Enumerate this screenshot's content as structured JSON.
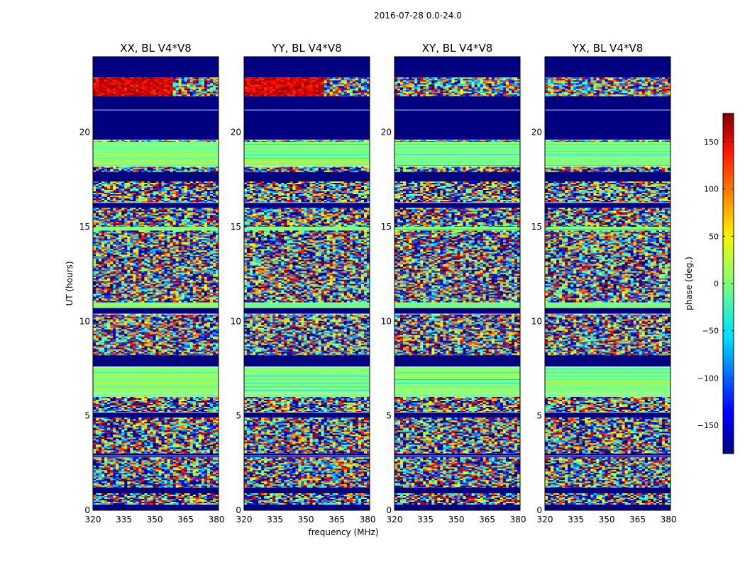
{
  "chart_data": {
    "type": "heatmap",
    "title": "2016-07-28 0.0-24.0",
    "xlabel": "frequency (MHz)",
    "ylabel": "UT (hours)",
    "xlim": [
      320,
      381
    ],
    "ylim": [
      0,
      24
    ],
    "xticks": [
      320,
      335,
      350,
      365,
      380
    ],
    "yticks": [
      0,
      5,
      10,
      15,
      20
    ],
    "xtick_labels": [
      "320",
      "335",
      "350",
      "365",
      "380"
    ],
    "ytick_labels": [
      "0",
      "5",
      "10",
      "15",
      "20"
    ],
    "panels": [
      {
        "title": "XX, BL V4*V8",
        "variant": "parallel"
      },
      {
        "title": "YY, BL V4*V8",
        "variant": "parallel"
      },
      {
        "title": "XY, BL V4*V8",
        "variant": "cross"
      },
      {
        "title": "YX, BL V4*V8",
        "variant": "cross"
      }
    ],
    "colorbar": {
      "label": "phase (deg.)",
      "vmin": -180,
      "vmax": 180,
      "ticks": [
        150,
        100,
        50,
        0,
        -50,
        -100,
        -150
      ],
      "tick_labels": [
        "150",
        "100",
        "50",
        "0",
        "−50",
        "−100",
        "−150"
      ],
      "colormap": "jet"
    },
    "bands": [
      {
        "y0": 22.9,
        "y1": 24.0,
        "kind": "blank"
      },
      {
        "y0": 22.3,
        "y1": 22.9,
        "kind": "hot"
      },
      {
        "y0": 21.9,
        "y1": 22.3,
        "kind": "hot"
      },
      {
        "y0": 19.6,
        "y1": 21.9,
        "kind": "blank"
      },
      {
        "y0": 19.5,
        "y1": 19.6,
        "kind": "noise"
      },
      {
        "y0": 18.2,
        "y1": 19.5,
        "kind": "flat"
      },
      {
        "y0": 17.9,
        "y1": 18.2,
        "kind": "noise"
      },
      {
        "y0": 17.4,
        "y1": 17.9,
        "kind": "blank"
      },
      {
        "y0": 16.3,
        "y1": 17.4,
        "kind": "noise"
      },
      {
        "y0": 16.0,
        "y1": 16.3,
        "kind": "blank"
      },
      {
        "y0": 15.0,
        "y1": 16.0,
        "kind": "noise"
      },
      {
        "y0": 14.8,
        "y1": 15.0,
        "kind": "flat"
      },
      {
        "y0": 13.4,
        "y1": 14.8,
        "kind": "noise"
      },
      {
        "y0": 11.0,
        "y1": 13.4,
        "kind": "noise"
      },
      {
        "y0": 10.7,
        "y1": 11.0,
        "kind": "flat"
      },
      {
        "y0": 10.4,
        "y1": 10.7,
        "kind": "blank"
      },
      {
        "y0": 8.2,
        "y1": 10.4,
        "kind": "noise"
      },
      {
        "y0": 7.6,
        "y1": 8.2,
        "kind": "blank"
      },
      {
        "y0": 6.0,
        "y1": 7.6,
        "kind": "flat"
      },
      {
        "y0": 5.2,
        "y1": 6.0,
        "kind": "noise"
      },
      {
        "y0": 4.9,
        "y1": 5.2,
        "kind": "blank"
      },
      {
        "y0": 3.0,
        "y1": 4.9,
        "kind": "noise"
      },
      {
        "y0": 2.8,
        "y1": 3.0,
        "kind": "blank"
      },
      {
        "y0": 1.2,
        "y1": 2.8,
        "kind": "noise"
      },
      {
        "y0": 0.9,
        "y1": 1.2,
        "kind": "blank"
      },
      {
        "y0": 0.3,
        "y1": 0.9,
        "kind": "noise"
      },
      {
        "y0": 0.0,
        "y1": 0.3,
        "kind": "blank"
      }
    ]
  }
}
